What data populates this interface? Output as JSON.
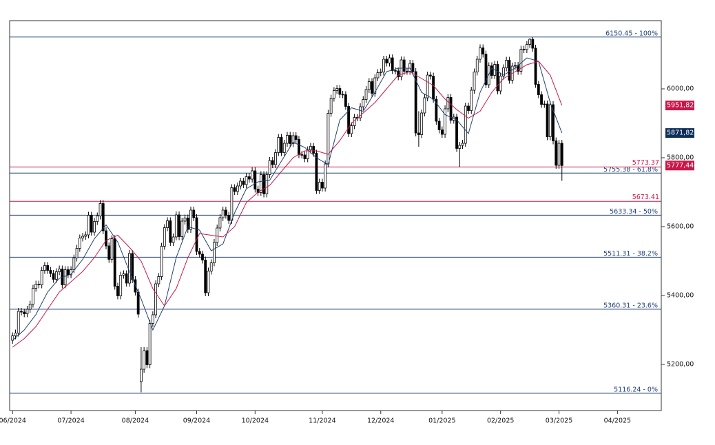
{
  "chart_data": {
    "type": "candlestick",
    "xlim": [
      -1,
      222
    ],
    "ylim": [
      5066,
      6198
    ],
    "xticks": [
      {
        "value": 0,
        "label": "06/2024"
      },
      {
        "value": 20,
        "label": "07/2024"
      },
      {
        "value": 42,
        "label": "08/2024"
      },
      {
        "value": 63,
        "label": "09/2024"
      },
      {
        "value": 83,
        "label": "10/2024"
      },
      {
        "value": 106,
        "label": "11/2024"
      },
      {
        "value": 126,
        "label": "12/2024"
      },
      {
        "value": 147,
        "label": "01/2025"
      },
      {
        "value": 167,
        "label": "02/2025"
      },
      {
        "value": 187,
        "label": "03/2025"
      },
      {
        "value": 207,
        "label": "04/2025"
      }
    ],
    "yticks": [
      {
        "value": 6000,
        "label": "6000,00"
      },
      {
        "value": 5800,
        "label": "5800,00"
      },
      {
        "value": 5600,
        "label": "5600,00"
      },
      {
        "value": 5400,
        "label": "5400,00"
      },
      {
        "value": 5200,
        "label": "5200,00"
      }
    ],
    "candles": {
      "up_color": "#ffffff",
      "down_color": "#000000",
      "open": [
        5270,
        5283,
        5291,
        5354,
        5352,
        5347,
        5360,
        5375,
        5421,
        5433,
        5431,
        5473,
        5487,
        5473,
        5464,
        5447,
        5469,
        5477,
        5431,
        5475,
        5460,
        5475,
        5509,
        5537,
        5567,
        5572,
        5576,
        5633,
        5584,
        5615,
        5631,
        5667,
        5588,
        5544,
        5505,
        5565,
        5427,
        5399,
        5459,
        5463,
        5436,
        5522,
        5446,
        5410,
        5150,
        5186,
        5240,
        5199,
        5319,
        5344,
        5434,
        5455,
        5543,
        5597,
        5617,
        5554,
        5570,
        5634,
        5571,
        5616,
        5625,
        5592,
        5648,
        5626,
        5528,
        5520,
        5503,
        5408,
        5471,
        5495,
        5554,
        5596,
        5626,
        5648,
        5633,
        5618,
        5713,
        5702,
        5718,
        5732,
        5722,
        5745,
        5738,
        5762,
        5709,
        5699,
        5751,
        5695,
        5751,
        5792,
        5780,
        5815,
        5859,
        5815,
        5842,
        5865,
        5841,
        5864,
        5853,
        5809,
        5808,
        5797,
        5823,
        5833,
        5813,
        5705,
        5729,
        5712,
        5782,
        5929,
        5973,
        5995,
        6001,
        5984,
        5983,
        5949,
        5870,
        5893,
        5917,
        5916,
        5948,
        5969,
        5998,
        6021,
        5987,
        6032,
        6047,
        6049,
        6086,
        6075,
        6090,
        6053,
        6052,
        6035,
        6084,
        6051,
        6051,
        6074,
        6050,
        5872,
        5867,
        5930,
        5974,
        6040,
        6037,
        5970,
        5906,
        5881,
        5868,
        5942,
        5975,
        5909,
        5918,
        5827,
        5836,
        5842,
        5950,
        5937,
        5996,
        6049,
        6086,
        6119,
        6101,
        6012,
        6067,
        6039,
        6071,
        5994,
        6037,
        6061,
        6083,
        6025,
        6066,
        6068,
        6051,
        6115,
        6114,
        6129,
        6144,
        6118,
        6013,
        5983,
        5955,
        5956,
        5861,
        5954,
        5849,
        5778,
        5842
      ],
      "high": [
        5293,
        5301,
        5364,
        5364,
        5362,
        5370,
        5385,
        5431,
        5443,
        5443,
        5483,
        5497,
        5497,
        5483,
        5474,
        5479,
        5487,
        5487,
        5485,
        5485,
        5485,
        5519,
        5547,
        5577,
        5582,
        5586,
        5643,
        5643,
        5625,
        5641,
        5677,
        5677,
        5598,
        5554,
        5575,
        5575,
        5437,
        5469,
        5473,
        5473,
        5532,
        5532,
        5456,
        5420,
        5250,
        5250,
        5250,
        5329,
        5354,
        5444,
        5465,
        5553,
        5607,
        5627,
        5627,
        5580,
        5644,
        5644,
        5626,
        5635,
        5635,
        5658,
        5658,
        5636,
        5538,
        5530,
        5513,
        5481,
        5505,
        5564,
        5606,
        5636,
        5658,
        5658,
        5643,
        5723,
        5723,
        5728,
        5742,
        5742,
        5755,
        5755,
        5772,
        5772,
        5719,
        5761,
        5761,
        5761,
        5802,
        5802,
        5825,
        5869,
        5869,
        5852,
        5875,
        5875,
        5874,
        5874,
        5863,
        5819,
        5818,
        5833,
        5843,
        5843,
        5823,
        5739,
        5739,
        5792,
        5939,
        5983,
        6005,
        6011,
        6011,
        5994,
        5993,
        5959,
        5903,
        5927,
        5927,
        5958,
        5979,
        6008,
        6031,
        6031,
        6042,
        6057,
        6059,
        6096,
        6096,
        6100,
        6100,
        6063,
        6062,
        6094,
        6094,
        6061,
        6084,
        6084,
        6060,
        5935,
        5940,
        5984,
        6050,
        6050,
        6047,
        5980,
        5916,
        5891,
        5952,
        5985,
        5985,
        5928,
        5928,
        5846,
        5852,
        5960,
        5960,
        6006,
        6059,
        6096,
        6129,
        6129,
        6111,
        6077,
        6077,
        6081,
        6081,
        6047,
        6071,
        6093,
        6093,
        6076,
        6078,
        6078,
        6125,
        6125,
        6139,
        6147,
        6150,
        6128,
        6023,
        5993,
        5966,
        5966,
        5964,
        5964,
        5859,
        5852,
        5852
      ],
      "low": [
        5260,
        5273,
        5281,
        5342,
        5337,
        5337,
        5350,
        5365,
        5411,
        5421,
        5421,
        5463,
        5463,
        5454,
        5437,
        5437,
        5459,
        5421,
        5421,
        5450,
        5450,
        5465,
        5499,
        5527,
        5557,
        5562,
        5566,
        5574,
        5574,
        5605,
        5621,
        5578,
        5534,
        5495,
        5495,
        5417,
        5389,
        5389,
        5449,
        5426,
        5426,
        5436,
        5400,
        5336,
        5119,
        5176,
        5189,
        5189,
        5309,
        5334,
        5424,
        5445,
        5533,
        5587,
        5544,
        5544,
        5560,
        5561,
        5561,
        5606,
        5582,
        5582,
        5616,
        5518,
        5510,
        5493,
        5398,
        5398,
        5461,
        5485,
        5544,
        5586,
        5616,
        5623,
        5608,
        5608,
        5692,
        5692,
        5708,
        5712,
        5712,
        5728,
        5728,
        5699,
        5689,
        5689,
        5685,
        5685,
        5741,
        5770,
        5770,
        5805,
        5805,
        5805,
        5832,
        5831,
        5831,
        5843,
        5799,
        5798,
        5787,
        5787,
        5813,
        5803,
        5695,
        5695,
        5702,
        5702,
        5772,
        5919,
        5963,
        5985,
        5974,
        5973,
        5939,
        5860,
        5860,
        5883,
        5906,
        5906,
        5938,
        5959,
        5988,
        5977,
        5977,
        6022,
        6037,
        6039,
        6065,
        6065,
        6043,
        6042,
        6025,
        6025,
        6041,
        6041,
        6041,
        6040,
        5862,
        5832,
        5857,
        5920,
        5964,
        6027,
        5960,
        5896,
        5871,
        5858,
        5858,
        5932,
        5899,
        5899,
        5817,
        5773,
        5826,
        5832,
        5927,
        5927,
        5986,
        6039,
        6076,
        6091,
        6002,
        6002,
        6029,
        6029,
        5984,
        5984,
        6027,
        6051,
        6015,
        6015,
        6056,
        6041,
        6041,
        6104,
        6104,
        6119,
        6108,
        6003,
        5973,
        5945,
        5945,
        5851,
        5851,
        5839,
        5768,
        5768,
        5733
      ],
      "close": [
        5283,
        5291,
        5354,
        5352,
        5347,
        5360,
        5375,
        5421,
        5433,
        5431,
        5473,
        5487,
        5473,
        5464,
        5447,
        5469,
        5477,
        5431,
        5475,
        5460,
        5475,
        5509,
        5537,
        5567,
        5572,
        5576,
        5633,
        5584,
        5615,
        5631,
        5667,
        5588,
        5544,
        5505,
        5565,
        5427,
        5399,
        5459,
        5463,
        5436,
        5522,
        5446,
        5410,
        5346,
        5186,
        5240,
        5199,
        5319,
        5344,
        5434,
        5455,
        5543,
        5597,
        5617,
        5554,
        5570,
        5634,
        5571,
        5616,
        5625,
        5592,
        5648,
        5626,
        5528,
        5520,
        5503,
        5408,
        5471,
        5495,
        5554,
        5596,
        5626,
        5648,
        5633,
        5618,
        5713,
        5702,
        5718,
        5732,
        5722,
        5745,
        5738,
        5762,
        5709,
        5699,
        5751,
        5695,
        5751,
        5792,
        5780,
        5815,
        5859,
        5815,
        5842,
        5865,
        5841,
        5864,
        5853,
        5809,
        5808,
        5797,
        5823,
        5833,
        5813,
        5705,
        5729,
        5712,
        5782,
        5929,
        5973,
        5995,
        6001,
        5984,
        5983,
        5949,
        5870,
        5893,
        5917,
        5916,
        5948,
        5969,
        5998,
        6021,
        5987,
        6032,
        6047,
        6049,
        6086,
        6075,
        6090,
        6053,
        6052,
        6035,
        6084,
        6051,
        6051,
        6074,
        6050,
        5872,
        5867,
        5930,
        5974,
        6040,
        6037,
        5970,
        5906,
        5881,
        5868,
        5942,
        5975,
        5909,
        5918,
        5827,
        5836,
        5842,
        5950,
        5937,
        5996,
        6049,
        6086,
        6119,
        6101,
        6012,
        6067,
        6039,
        6071,
        5994,
        6037,
        6061,
        6083,
        6025,
        6066,
        6068,
        6051,
        6115,
        6114,
        6129,
        6144,
        6118,
        6013,
        5983,
        5955,
        5956,
        5861,
        5954,
        5849,
        5778,
        5842,
        5777.44
      ]
    },
    "moving_averages": [
      {
        "color": "#1f3f73",
        "x": [
          0,
          4,
          8,
          12,
          16,
          20,
          24,
          28,
          32,
          36,
          40,
          44,
          48,
          52,
          56,
          60,
          64,
          68,
          72,
          76,
          80,
          84,
          88,
          92,
          96,
          100,
          104,
          108,
          112,
          116,
          120,
          124,
          128,
          132,
          136,
          140,
          144,
          148,
          152,
          156,
          160,
          164,
          168,
          172,
          176,
          180,
          184,
          188
        ],
        "values": [
          5270,
          5300,
          5345,
          5410,
          5450,
          5462,
          5505,
          5565,
          5605,
          5555,
          5470,
          5390,
          5300,
          5370,
          5510,
          5600,
          5590,
          5530,
          5550,
          5640,
          5710,
          5730,
          5735,
          5790,
          5845,
          5830,
          5800,
          5780,
          5910,
          5945,
          5935,
          5990,
          6050,
          6060,
          6060,
          5990,
          5970,
          5925,
          5910,
          5870,
          5990,
          6060,
          6040,
          6060,
          6090,
          6080,
          5960,
          5871.82
        ]
      },
      {
        "color": "#c8184a",
        "x": [
          0,
          4,
          8,
          12,
          16,
          20,
          24,
          28,
          32,
          36,
          40,
          44,
          48,
          52,
          56,
          60,
          64,
          68,
          72,
          76,
          80,
          84,
          88,
          92,
          96,
          100,
          104,
          108,
          112,
          116,
          120,
          124,
          128,
          132,
          136,
          140,
          144,
          148,
          152,
          156,
          160,
          164,
          168,
          172,
          176,
          180,
          184,
          188
        ],
        "values": [
          5250,
          5275,
          5310,
          5360,
          5410,
          5440,
          5470,
          5510,
          5560,
          5575,
          5540,
          5500,
          5420,
          5370,
          5420,
          5510,
          5580,
          5575,
          5570,
          5600,
          5670,
          5700,
          5720,
          5760,
          5800,
          5820,
          5820,
          5810,
          5850,
          5900,
          5930,
          5960,
          6000,
          6040,
          6050,
          6030,
          6010,
          5970,
          5940,
          5915,
          5935,
          5990,
          6030,
          6050,
          6070,
          6080,
          6040,
          5951.82
        ]
      }
    ],
    "level_color": "#1f3f73",
    "levels": [
      {
        "value": 6150.45,
        "label": "6150.45 - 100%"
      },
      {
        "value": 5755.38,
        "label": "5755.38 - 61.8%"
      },
      {
        "value": 5633.34,
        "label": "5633.34 - 50%"
      },
      {
        "value": 5511.31,
        "label": "5511.31 - 38.2%"
      },
      {
        "value": 5360.31,
        "label": "5360.31 - 23.6%"
      },
      {
        "value": 5116.24,
        "label": "5116.24 - 0%"
      }
    ],
    "mark_color": "#c8184a",
    "marks": [
      {
        "value": 5773.37,
        "label": "5773.37"
      },
      {
        "value": 5673.41,
        "label": "5673.41"
      }
    ],
    "price_tags": [
      {
        "value": 5951.82,
        "label": "5951,82",
        "color": "#c8184a"
      },
      {
        "value": 5871.82,
        "label": "5871,82",
        "color": "#0f2f5a"
      },
      {
        "value": 5777.44,
        "label": "5777,44",
        "color": "#c8184a"
      }
    ]
  }
}
